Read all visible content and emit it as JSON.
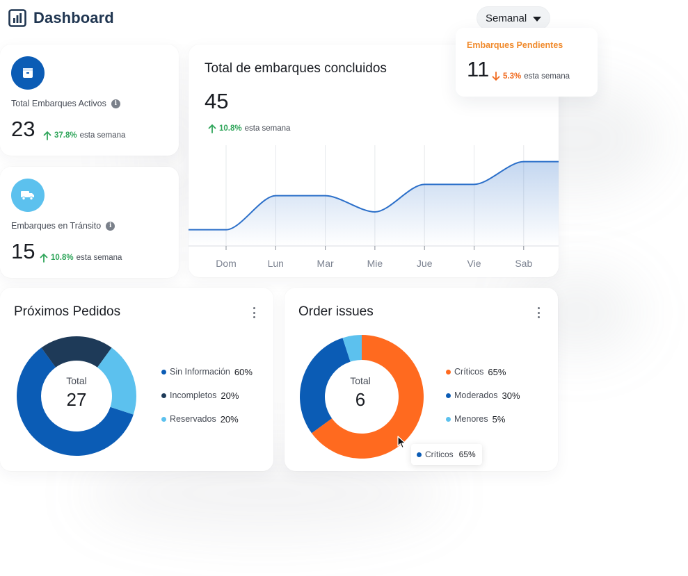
{
  "header": {
    "title": "Dashboard",
    "logo_icon": "bar-chart-icon"
  },
  "period_select": {
    "value": "Semanal",
    "icon": "caret-down-icon"
  },
  "stats": {
    "activos": {
      "icon": "box-icon",
      "icon_bg": "#0b5cb5",
      "label": "Total Embarques Activos",
      "value": "23",
      "trend_pct": "37.8%",
      "trend_text": "esta semana",
      "trend_dir": "up"
    },
    "transito": {
      "icon": "truck-icon",
      "icon_bg": "#5cc1ee",
      "label": "Embarques en Tránsito",
      "value": "15",
      "trend_pct": "10.8%",
      "trend_text": "esta semana",
      "trend_dir": "up"
    },
    "pendientes": {
      "label": "Embarques Pendientes",
      "label_color": "#f08a2c",
      "value": "11",
      "trend_pct": "5.3%",
      "trend_text": "esta semana",
      "trend_dir": "down"
    }
  },
  "line_card": {
    "title": "Total de embarques concluidos",
    "value": "45",
    "trend_pct": "10.8%",
    "trend_text": "esta semana"
  },
  "chart_data": [
    {
      "type": "area",
      "title": "Total de embarques concluidos",
      "categories": [
        "Dom",
        "Lun",
        "Mar",
        "Mie",
        "Jue",
        "Vie",
        "Sab"
      ],
      "series": [
        {
          "values": [
            10,
            31,
            31,
            21,
            38,
            38,
            52
          ]
        }
      ],
      "ylim": [
        0,
        60
      ],
      "grid": "vertical",
      "line_color": "#2b6fc9"
    },
    {
      "type": "pie",
      "title": "Próximos Pedidos",
      "center_label": "Total",
      "center_value": "27",
      "categories": [
        "Sin Información",
        "Incompletos",
        "Reservados"
      ],
      "values": [
        60,
        20,
        20
      ],
      "labels": [
        "60%",
        "20%",
        "20%"
      ],
      "colors": [
        "#0b5cb5",
        "#1e3a58",
        "#5cc1ee"
      ]
    },
    {
      "type": "pie",
      "title": "Order issues",
      "center_label": "Total",
      "center_value": "6",
      "categories": [
        "Críticos",
        "Moderados",
        "Menores"
      ],
      "values": [
        65,
        30,
        5
      ],
      "labels": [
        "65%",
        "30%",
        "5%"
      ],
      "colors": [
        "#ff6a1f",
        "#0b5cb5",
        "#5cc1ee"
      ]
    }
  ],
  "tooltip": {
    "label": "Críticos",
    "value": "65%",
    "color": "#0b5cb5"
  }
}
